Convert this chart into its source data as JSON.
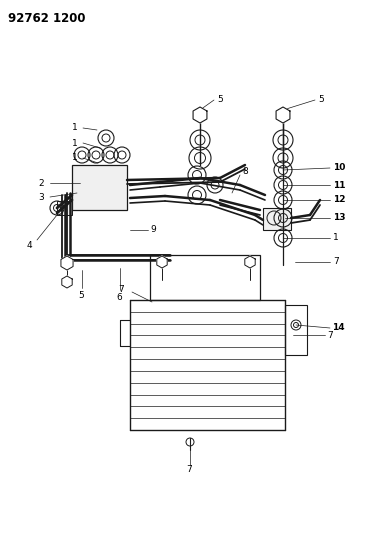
{
  "title_code": "92762 1200",
  "bg_color": "#ffffff",
  "line_color": "#1a1a1a",
  "fig_width": 3.84,
  "fig_height": 5.33,
  "dpi": 100
}
